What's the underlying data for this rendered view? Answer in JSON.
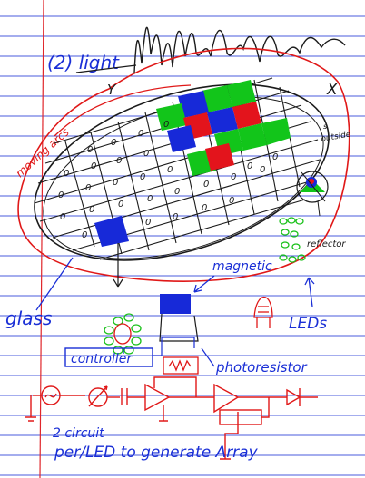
{
  "colors": {
    "paper": "#ffffff",
    "rule_line": "#2a3fd9",
    "margin_line": "#e0262b",
    "ink_blue": "#1a2fd6",
    "ink_black": "#1b1b1b",
    "ink_red": "#e01818",
    "ink_green": "#18c018",
    "cell_blue": "#1729d8",
    "cell_red": "#e3141c",
    "cell_green": "#12c51a"
  },
  "labels": {
    "light": "(2) light",
    "y_axis": "Y",
    "x_axis": "X",
    "red_annotation": "moving arcs",
    "outside": "outside",
    "outside_note": "s",
    "reflector": "reflector",
    "magnetic": "magnetic",
    "glass": "glass",
    "leds": "LEDs",
    "controller": "controller",
    "photoresistor": "photoresistor",
    "circuit": "2 circuit",
    "bottom_line": "per/LED to generate Array"
  },
  "grid_cell_mark": "0",
  "icons": {
    "reflector_eye": "eye-reflector-icon",
    "resistor": "resistor-icon",
    "diode": "diode-icon",
    "ground": "ground-icon",
    "op_amp": "op-amp-icon"
  }
}
